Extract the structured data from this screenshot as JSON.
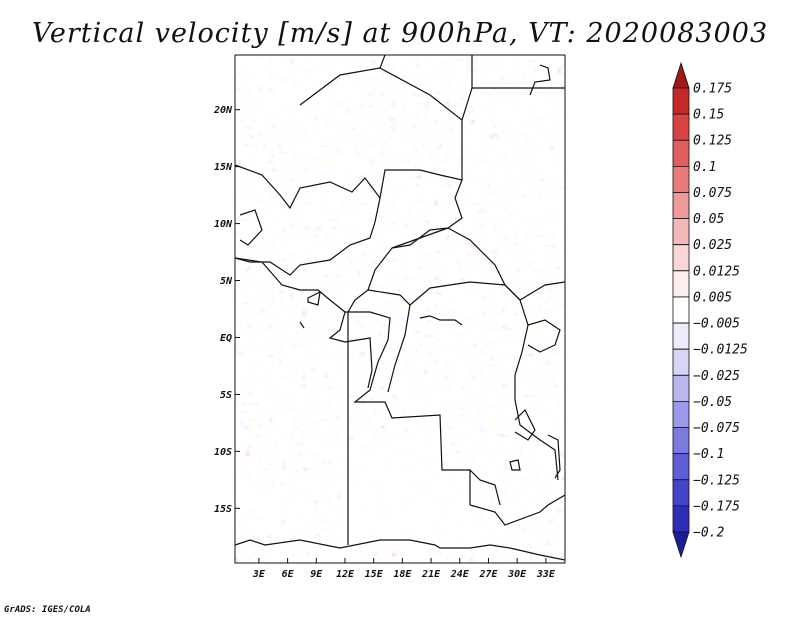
{
  "title": "Vertical velocity [m/s] at 900hPa, VT: 2020083003",
  "credit": "GrADS: IGES/COLA",
  "map": {
    "lat_labels": [
      "20N",
      "15N",
      "10N",
      "5N",
      "EQ",
      "5S",
      "10S",
      "15S"
    ],
    "lat_values": [
      20,
      15,
      10,
      5,
      0,
      -5,
      -10,
      -15
    ],
    "lon_labels": [
      "3E",
      "6E",
      "9E",
      "12E",
      "15E",
      "18E",
      "21E",
      "24E",
      "27E",
      "30E",
      "33E"
    ],
    "lon_values": [
      3,
      6,
      9,
      12,
      15,
      18,
      21,
      24,
      27,
      30,
      33
    ],
    "lon_range": [
      0.5,
      35
    ],
    "lat_range": [
      -19.8,
      24.8
    ]
  },
  "colorbar": {
    "labels": [
      "0.175",
      "0.15",
      "0.125",
      "0.1",
      "0.075",
      "0.05",
      "0.025",
      "0.0125",
      "0.005",
      "−0.005",
      "−0.0125",
      "−0.025",
      "−0.05",
      "−0.075",
      "−0.1",
      "−0.125",
      "−0.175",
      "−0.2"
    ],
    "colors": [
      "#a01818",
      "#c62828",
      "#d84444",
      "#e05e5e",
      "#e87c7c",
      "#ee9a9a",
      "#f4b8b8",
      "#f9d5d5",
      "#fdeeee",
      "#ffffff",
      "#ececfb",
      "#d5d5f6",
      "#b8b8ef",
      "#9a9ae8",
      "#7c7ce0",
      "#5e5ed6",
      "#4444c8",
      "#2e2eb4",
      "#1c1c9c"
    ]
  }
}
